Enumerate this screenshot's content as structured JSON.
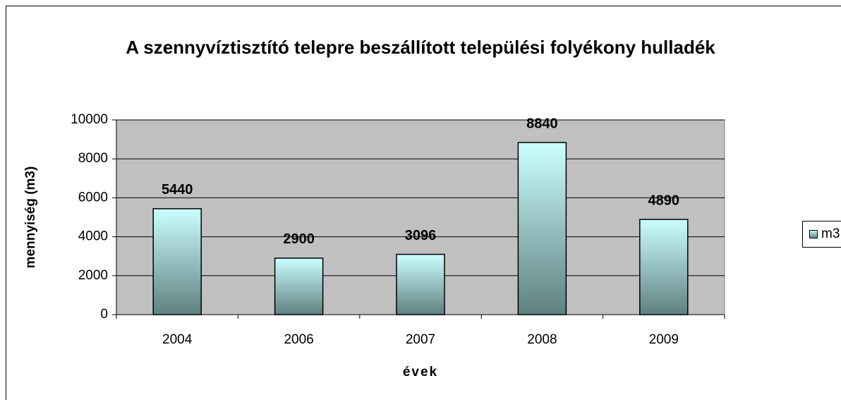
{
  "chart_data": {
    "type": "bar",
    "title": "A szennyvíztisztító telepre beszállított települési folyékony hulladék",
    "x_label": "évek",
    "y_label": "mennyiség (m3)",
    "categories": [
      "2004",
      "2006",
      "2007",
      "2008",
      "2009"
    ],
    "series": [
      {
        "name": "m3",
        "color": [
          "#ccffff",
          "#5f8080"
        ],
        "values": [
          5440,
          2900,
          3096,
          8840,
          4890
        ]
      }
    ],
    "ylim": [
      0,
      10000
    ],
    "yticks": [
      0,
      2000,
      4000,
      6000,
      8000,
      10000
    ],
    "grid": true,
    "legend": "right",
    "plot_background": "#c0c0c0"
  }
}
